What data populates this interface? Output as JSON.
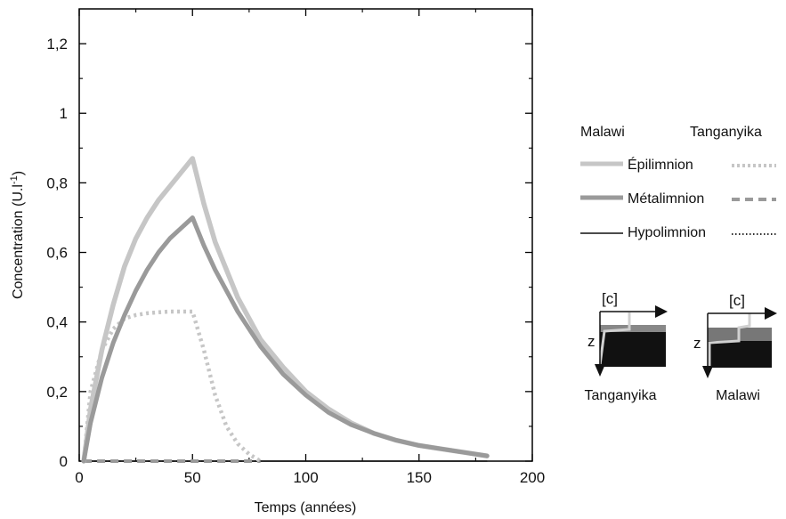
{
  "chart_data": {
    "type": "line",
    "title": "",
    "xlabel": "Temps (années)",
    "ylabel_main": "Concentration (U.l",
    "ylabel_sup": "-1",
    "ylabel_close": ")",
    "xlim": [
      0,
      200
    ],
    "ylim": [
      0,
      1.3
    ],
    "xticks": [
      0,
      50,
      100,
      150,
      200
    ],
    "xtick_labels": [
      "0",
      "50",
      "100",
      "150",
      "200"
    ],
    "yticks": [
      0,
      0.2,
      0.4,
      0.6,
      0.8,
      1.0,
      1.2
    ],
    "ytick_labels": [
      "0",
      "0,2",
      "0,4",
      "0,6",
      "0,8",
      "1",
      "1,2"
    ],
    "grid": false,
    "legend": {
      "placement": "right",
      "col_headers": [
        "Malawi",
        "Tanganyika"
      ],
      "rows": [
        {
          "label": "Épilimnion",
          "malawi_series": "malawi_epi",
          "tanganyika_series": "tanganyika_epi"
        },
        {
          "label": "Métalimnion",
          "malawi_series": "malawi_meta",
          "tanganyika_series": "tanganyika_meta"
        },
        {
          "label": "Hypolimnion",
          "malawi_series": "malawi_hypo",
          "tanganyika_series": "tanganyika_hypo"
        }
      ]
    },
    "series": [
      {
        "id": "malawi_epi",
        "style": "light-thick",
        "x": [
          2,
          5,
          10,
          15,
          20,
          25,
          30,
          35,
          40,
          45,
          50,
          55,
          60,
          70,
          80,
          90,
          100,
          110,
          120,
          130,
          140,
          150,
          160,
          170,
          180
        ],
        "y": [
          0,
          0.15,
          0.32,
          0.45,
          0.56,
          0.64,
          0.7,
          0.75,
          0.79,
          0.83,
          0.87,
          0.74,
          0.63,
          0.47,
          0.35,
          0.27,
          0.2,
          0.15,
          0.11,
          0.08,
          0.06,
          0.045,
          0.035,
          0.025,
          0.015
        ]
      },
      {
        "id": "malawi_meta",
        "style": "mid-thick",
        "x": [
          2,
          5,
          10,
          15,
          20,
          25,
          30,
          35,
          40,
          45,
          50,
          55,
          60,
          70,
          80,
          90,
          100,
          110,
          120,
          130,
          140,
          150,
          160,
          170,
          180
        ],
        "y": [
          0,
          0.11,
          0.24,
          0.34,
          0.42,
          0.49,
          0.55,
          0.6,
          0.64,
          0.67,
          0.7,
          0.62,
          0.55,
          0.43,
          0.33,
          0.25,
          0.19,
          0.14,
          0.105,
          0.08,
          0.06,
          0.045,
          0.035,
          0.025,
          0.015
        ]
      },
      {
        "id": "malawi_hypo",
        "style": "dark-thin",
        "x": [
          2,
          10,
          20,
          30,
          40,
          50,
          60,
          70,
          80,
          90,
          100,
          110,
          120,
          130,
          140,
          150,
          160,
          170,
          180
        ],
        "y": [
          0,
          0,
          0,
          0,
          0,
          0,
          0,
          0,
          0,
          0,
          0,
          0,
          0,
          0,
          0,
          0,
          0,
          0,
          0
        ]
      },
      {
        "id": "tanganyika_epi",
        "style": "light-dotted",
        "x": [
          2,
          5,
          10,
          15,
          20,
          25,
          30,
          35,
          40,
          45,
          50,
          55,
          60,
          65,
          70,
          75,
          80
        ],
        "y": [
          0,
          0.2,
          0.32,
          0.38,
          0.41,
          0.42,
          0.425,
          0.428,
          0.43,
          0.43,
          0.43,
          0.32,
          0.19,
          0.1,
          0.05,
          0.02,
          0
        ]
      },
      {
        "id": "tanganyika_meta",
        "style": "mid-dashed",
        "x": [
          2,
          10,
          20,
          30,
          40,
          50,
          60,
          70,
          80
        ],
        "y": [
          0,
          0,
          0,
          0,
          0,
          0,
          0,
          0,
          0
        ]
      },
      {
        "id": "tanganyika_hypo",
        "style": "dark-dotted",
        "x": [
          2,
          10,
          20,
          30,
          40,
          50,
          60,
          70,
          80
        ],
        "y": [
          0,
          0,
          0,
          0,
          0,
          0,
          0,
          0,
          0
        ]
      }
    ],
    "insets": [
      {
        "title": "Tanganyika",
        "c_label": "[c]",
        "z_label": "z"
      },
      {
        "title": "Malawi",
        "c_label": "[c]",
        "z_label": "z"
      }
    ]
  },
  "colors": {
    "light": "#c6c6c6",
    "mid": "#9a9a9a",
    "dark": "#111111",
    "axis": "#000000"
  }
}
